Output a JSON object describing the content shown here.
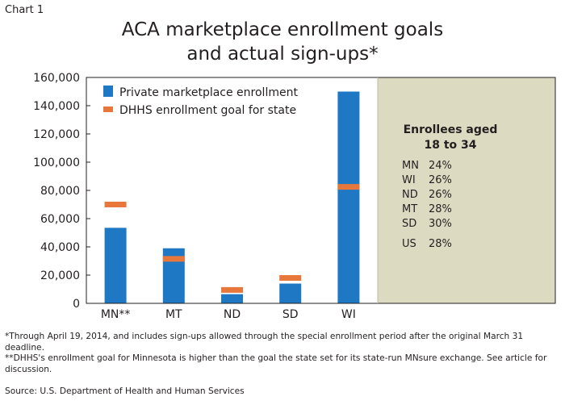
{
  "chart_label": "Chart 1",
  "title_lines": [
    "ACA marketplace enrollment goals",
    "and actual sign-ups*"
  ],
  "colors": {
    "enrollment": "#1f78c4",
    "goal": "#e8773c",
    "panel": "#dcdbc2",
    "plot_border": "#231f20"
  },
  "chart_data": {
    "type": "bar",
    "categories": [
      "MN**",
      "MT",
      "ND",
      "SD",
      "WI"
    ],
    "series": [
      {
        "name": "Private marketplace enrollment",
        "values": [
          53500,
          39000,
          6500,
          14000,
          150000
        ]
      },
      {
        "name": "DHHS enrollment goal for state",
        "values": [
          70000,
          31500,
          9500,
          18000,
          82500
        ]
      }
    ],
    "ylim": [
      0,
      160000
    ],
    "yticks": [
      0,
      20000,
      40000,
      60000,
      80000,
      100000,
      120000,
      140000,
      160000
    ],
    "ytick_labels": [
      "0",
      "20,000",
      "40,000",
      "60,000",
      "80,000",
      "100,000",
      "120,000",
      "140,000",
      "160,000"
    ],
    "legend_position": "top-left",
    "grid": false
  },
  "side_panel": {
    "heading_lines": [
      "Enrollees aged",
      "18 to 34"
    ],
    "rows": [
      {
        "state": "MN",
        "pct": "24%"
      },
      {
        "state": "WI",
        "pct": "26%"
      },
      {
        "state": "ND",
        "pct": "26%"
      },
      {
        "state": "MT",
        "pct": "28%"
      },
      {
        "state": "SD",
        "pct": "30%"
      }
    ],
    "us_row": {
      "state": "US",
      "pct": "28%"
    }
  },
  "notes": [
    "*Through April 19, 2014, and includes sign-ups allowed through the special enrollment period after the original March 31 deadline.",
    "**DHHS's enrollment goal for Minnesota is higher than the goal the state set for its state-run MNsure exchange. See article for discussion."
  ],
  "source": "Source: U.S. Department of Health and Human Services"
}
